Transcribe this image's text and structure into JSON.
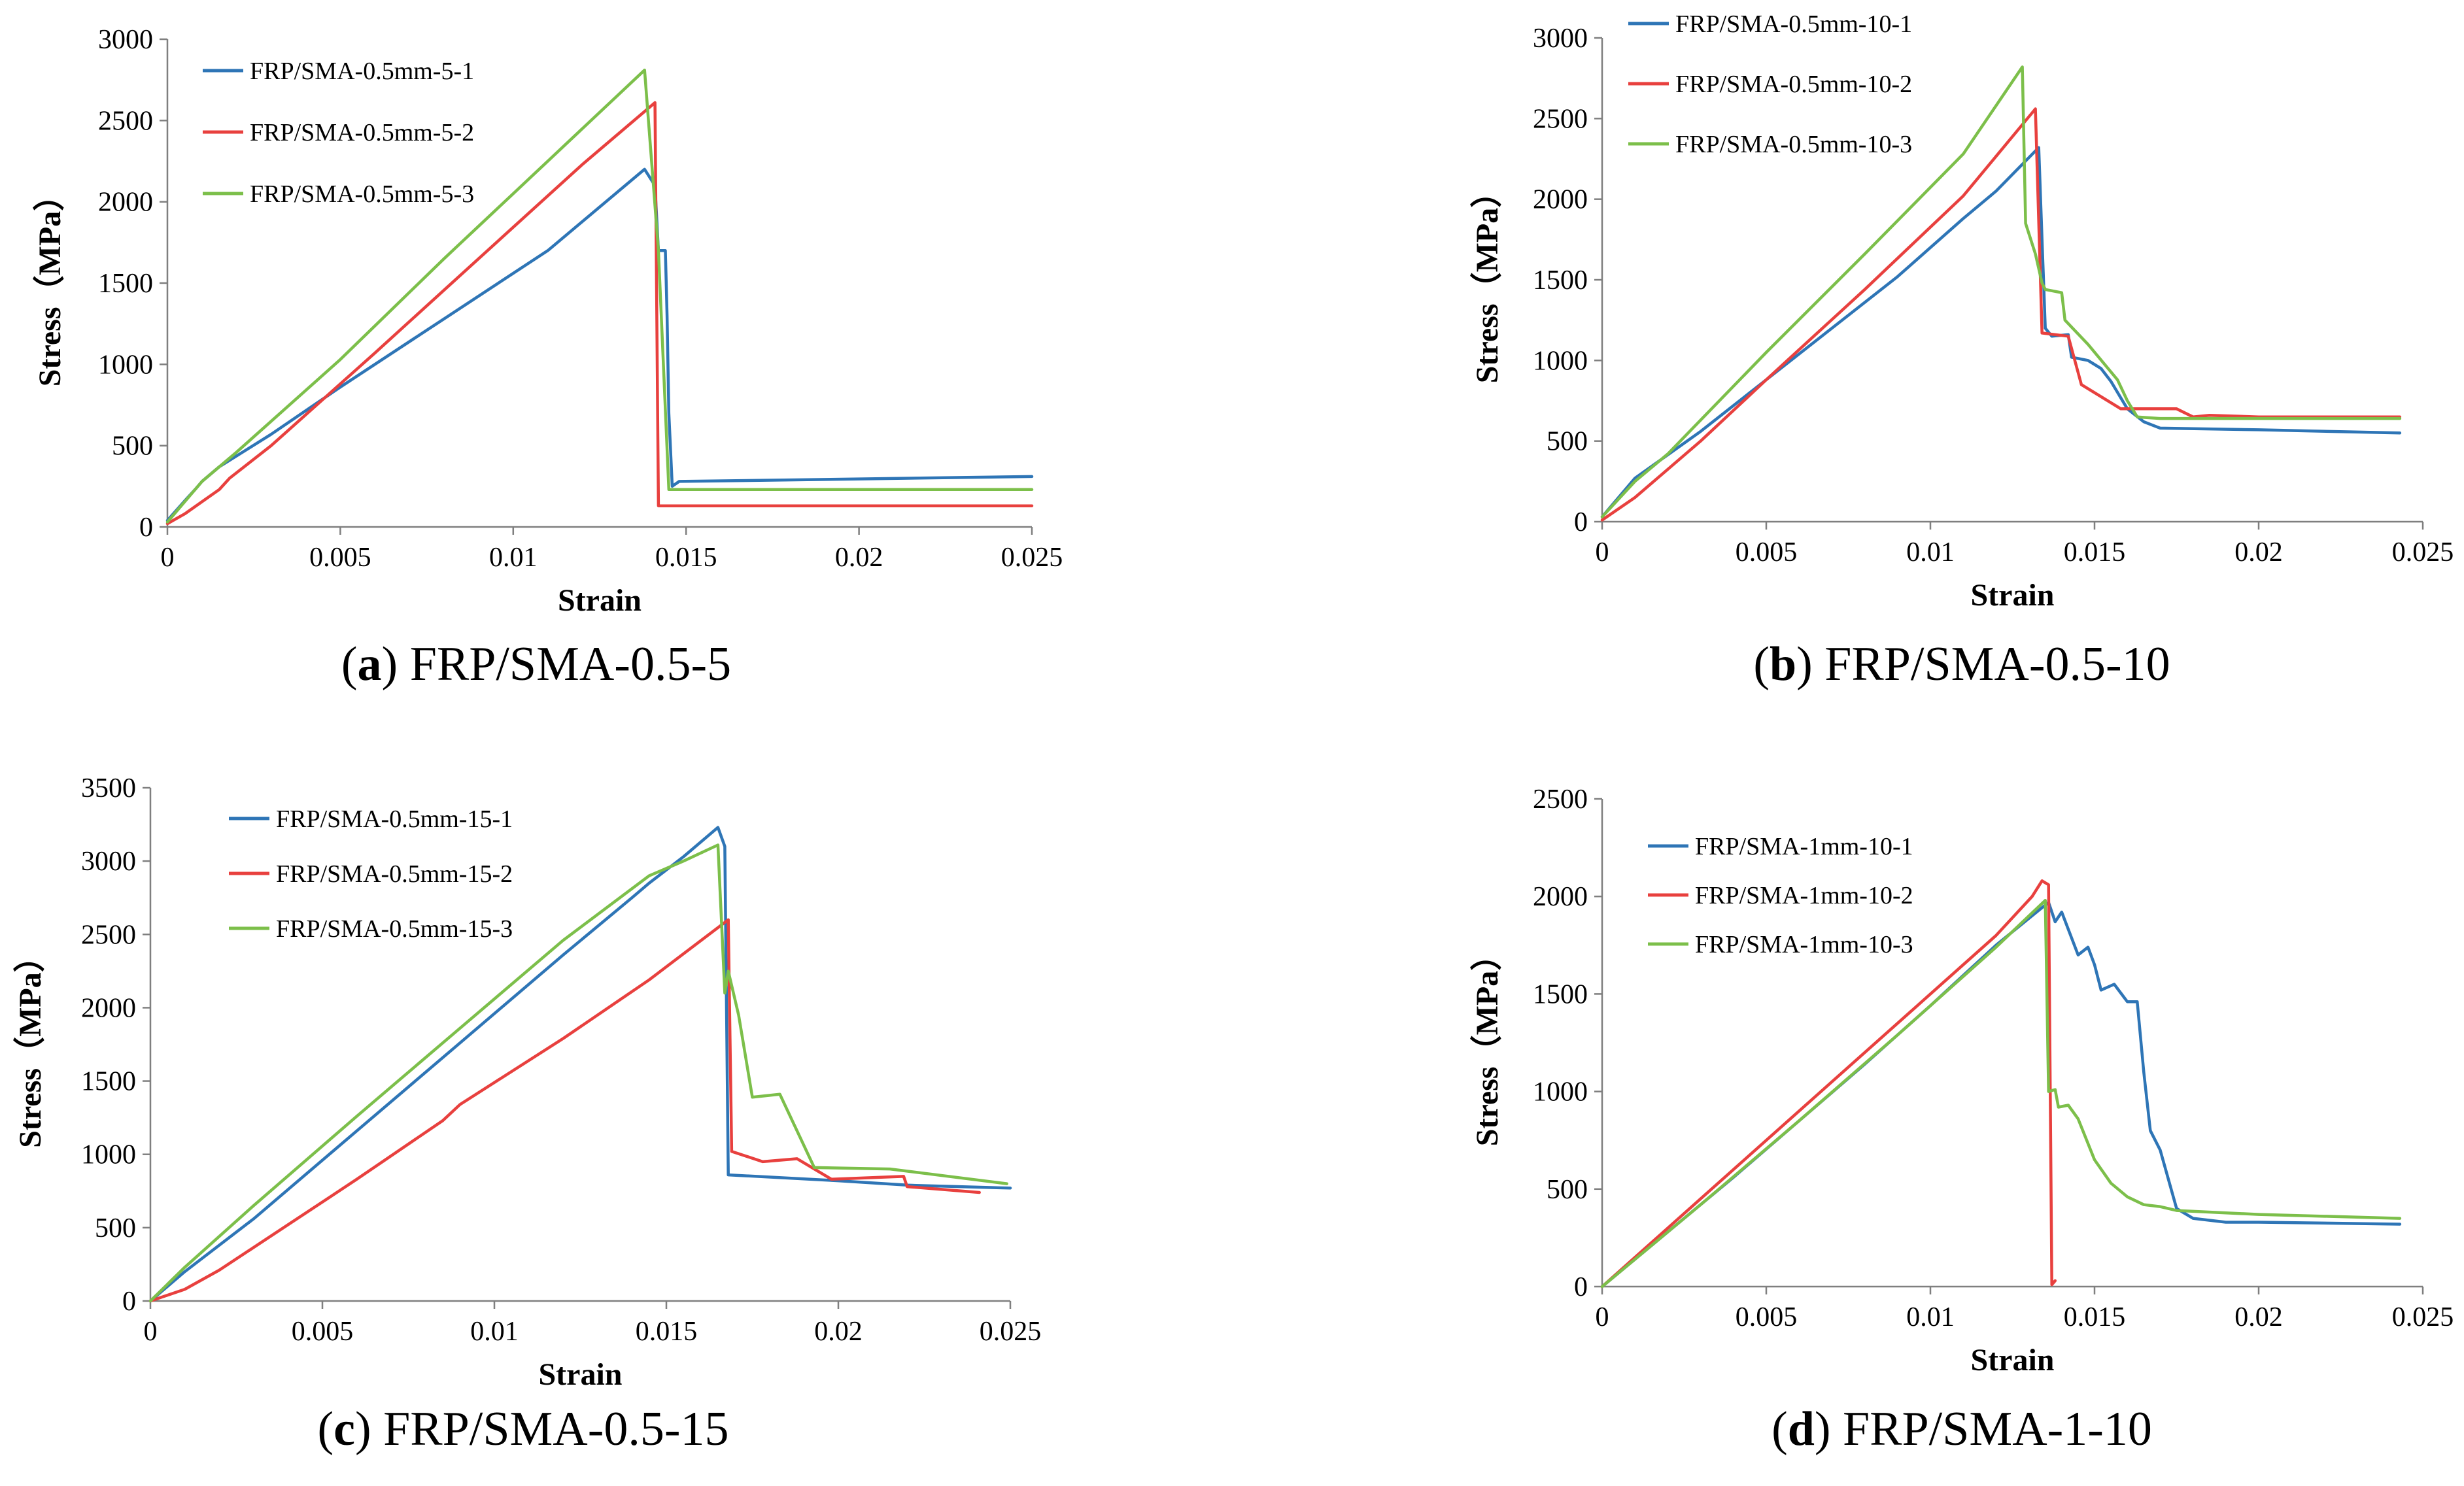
{
  "colors": {
    "series1": "#2E75B6",
    "series2": "#E8403E",
    "series3": "#7CBF4A"
  },
  "chart_data": [
    {
      "type": "line",
      "caption_letter": "a",
      "caption_rest": ") FRP/SMA-0.5-5",
      "caption_open": "(",
      "xlabel": "Strain",
      "ylabel": "Stress（MPa）",
      "xlim": [
        0,
        0.025
      ],
      "ylim": [
        0,
        3000
      ],
      "xticks": [
        "0",
        "0.005",
        "0.01",
        "0.015",
        "0.02",
        "0.025"
      ],
      "xtick_values": [
        0,
        0.005,
        0.01,
        0.015,
        0.02,
        0.025
      ],
      "yticks": [
        "0",
        "500",
        "1000",
        "1500",
        "2000",
        "2500",
        "3000"
      ],
      "ytick_values": [
        0,
        500,
        1000,
        1500,
        2000,
        2500,
        3000
      ],
      "legend_position": "top-left",
      "series": [
        {
          "name": "FRP/SMA-0.5mm-5-1",
          "color_key": "series1",
          "points": [
            [
              0,
              40
            ],
            [
              0.0005,
              160
            ],
            [
              0.0008,
              230
            ],
            [
              0.001,
              280
            ],
            [
              0.0015,
              370
            ],
            [
              0.003,
              570
            ],
            [
              0.005,
              860
            ],
            [
              0.008,
              1280
            ],
            [
              0.011,
              1700
            ],
            [
              0.0138,
              2200
            ],
            [
              0.0141,
              2100
            ],
            [
              0.0142,
              1700
            ],
            [
              0.0144,
              1700
            ],
            [
              0.01445,
              1300
            ],
            [
              0.0145,
              700
            ],
            [
              0.0146,
              250
            ],
            [
              0.0148,
              280
            ],
            [
              0.02,
              295
            ],
            [
              0.025,
              310
            ]
          ]
        },
        {
          "name": "FRP/SMA-0.5mm-5-2",
          "color_key": "series2",
          "points": [
            [
              0,
              20
            ],
            [
              0.0005,
              80
            ],
            [
              0.0015,
              230
            ],
            [
              0.0018,
              300
            ],
            [
              0.003,
              500
            ],
            [
              0.006,
              1070
            ],
            [
              0.009,
              1650
            ],
            [
              0.012,
              2230
            ],
            [
              0.0141,
              2610
            ],
            [
              0.0142,
              130
            ],
            [
              0.02,
              130
            ],
            [
              0.025,
              130
            ]
          ]
        },
        {
          "name": "FRP/SMA-0.5mm-5-3",
          "color_key": "series3",
          "points": [
            [
              0,
              30
            ],
            [
              0.001,
              280
            ],
            [
              0.002,
              460
            ],
            [
              0.005,
              1030
            ],
            [
              0.008,
              1650
            ],
            [
              0.011,
              2250
            ],
            [
              0.0138,
              2810
            ],
            [
              0.0142,
              1700
            ],
            [
              0.0145,
              230
            ],
            [
              0.02,
              230
            ],
            [
              0.025,
              230
            ]
          ]
        }
      ]
    },
    {
      "type": "line",
      "caption_letter": "b",
      "caption_rest": ") FRP/SMA-0.5-10",
      "caption_open": "(",
      "xlabel": "Strain",
      "ylabel": "Stress（MPa）",
      "xlim": [
        0,
        0.025
      ],
      "ylim": [
        0,
        3000
      ],
      "xticks": [
        "0",
        "0.005",
        "0.01",
        "0.015",
        "0.02",
        "0.025"
      ],
      "xtick_values": [
        0,
        0.005,
        0.01,
        0.015,
        0.02,
        0.025
      ],
      "yticks": [
        "0",
        "500",
        "1000",
        "1500",
        "2000",
        "2500",
        "3000"
      ],
      "ytick_values": [
        0,
        500,
        1000,
        1500,
        2000,
        2500,
        3000
      ],
      "legend_position": "top-left",
      "series": [
        {
          "name": "FRP/SMA-0.5mm-10-1",
          "color_key": "series1",
          "points": [
            [
              0,
              30
            ],
            [
              0.001,
              270
            ],
            [
              0.003,
              560
            ],
            [
              0.005,
              880
            ],
            [
              0.007,
              1200
            ],
            [
              0.009,
              1520
            ],
            [
              0.011,
              1880
            ],
            [
              0.012,
              2050
            ],
            [
              0.0133,
              2320
            ],
            [
              0.0134,
              1750
            ],
            [
              0.0135,
              1200
            ],
            [
              0.0137,
              1150
            ],
            [
              0.0142,
              1160
            ],
            [
              0.0143,
              1020
            ],
            [
              0.0148,
              1000
            ],
            [
              0.0152,
              950
            ],
            [
              0.0155,
              870
            ],
            [
              0.016,
              700
            ],
            [
              0.0165,
              620
            ],
            [
              0.017,
              580
            ],
            [
              0.02,
              570
            ],
            [
              0.0243,
              550
            ]
          ]
        },
        {
          "name": "FRP/SMA-0.5mm-10-2",
          "color_key": "series2",
          "points": [
            [
              0,
              10
            ],
            [
              0.001,
              150
            ],
            [
              0.003,
              500
            ],
            [
              0.005,
              880
            ],
            [
              0.008,
              1440
            ],
            [
              0.011,
              2020
            ],
            [
              0.0132,
              2560
            ],
            [
              0.0134,
              1170
            ],
            [
              0.0142,
              1150
            ],
            [
              0.0146,
              850
            ],
            [
              0.0158,
              700
            ],
            [
              0.0175,
              700
            ],
            [
              0.018,
              650
            ],
            [
              0.0185,
              660
            ],
            [
              0.02,
              650
            ],
            [
              0.0243,
              650
            ]
          ]
        },
        {
          "name": "FRP/SMA-0.5mm-10-3",
          "color_key": "series3",
          "points": [
            [
              0,
              30
            ],
            [
              0.001,
              250
            ],
            [
              0.002,
              420
            ],
            [
              0.005,
              1050
            ],
            [
              0.008,
              1660
            ],
            [
              0.011,
              2280
            ],
            [
              0.0128,
              2820
            ],
            [
              0.0129,
              1850
            ],
            [
              0.0132,
              1660
            ],
            [
              0.0134,
              1480
            ],
            [
              0.0135,
              1440
            ],
            [
              0.014,
              1420
            ],
            [
              0.0141,
              1250
            ],
            [
              0.0148,
              1100
            ],
            [
              0.0157,
              880
            ],
            [
              0.016,
              750
            ],
            [
              0.0163,
              650
            ],
            [
              0.017,
              640
            ],
            [
              0.02,
              640
            ],
            [
              0.0243,
              640
            ]
          ]
        }
      ]
    },
    {
      "type": "line",
      "caption_letter": "c",
      "caption_rest": ") FRP/SMA-0.5-15",
      "caption_open": "(",
      "xlabel": "Strain",
      "ylabel": "Stress（MPa）",
      "xlim": [
        0,
        0.025
      ],
      "ylim": [
        0,
        3500
      ],
      "xticks": [
        "0",
        "0.005",
        "0.01",
        "0.015",
        "0.02",
        "0.025"
      ],
      "xtick_values": [
        0,
        0.005,
        0.01,
        0.015,
        0.02,
        0.025
      ],
      "yticks": [
        "0",
        "500",
        "1000",
        "1500",
        "2000",
        "2500",
        "3000",
        "3500"
      ],
      "ytick_values": [
        0,
        500,
        1000,
        1500,
        2000,
        2500,
        3000,
        3500
      ],
      "legend_position": "top-left",
      "series": [
        {
          "name": "FRP/SMA-0.5mm-15-1",
          "color_key": "series1",
          "points": [
            [
              0,
              0
            ],
            [
              0.001,
              200
            ],
            [
              0.003,
              560
            ],
            [
              0.006,
              1160
            ],
            [
              0.009,
              1760
            ],
            [
              0.012,
              2360
            ],
            [
              0.014,
              2750
            ],
            [
              0.0145,
              2850
            ],
            [
              0.0155,
              3030
            ],
            [
              0.0165,
              3230
            ],
            [
              0.0167,
              3100
            ],
            [
              0.0168,
              860
            ],
            [
              0.02,
              820
            ],
            [
              0.022,
              790
            ],
            [
              0.025,
              770
            ]
          ]
        },
        {
          "name": "FRP/SMA-0.5mm-15-2",
          "color_key": "series2",
          "points": [
            [
              0,
              0
            ],
            [
              0.001,
              80
            ],
            [
              0.002,
              210
            ],
            [
              0.004,
              520
            ],
            [
              0.006,
              830
            ],
            [
              0.0085,
              1230
            ],
            [
              0.009,
              1340
            ],
            [
              0.012,
              1790
            ],
            [
              0.0145,
              2190
            ],
            [
              0.0168,
              2600
            ],
            [
              0.0169,
              1020
            ],
            [
              0.0178,
              950
            ],
            [
              0.0188,
              970
            ],
            [
              0.0198,
              830
            ],
            [
              0.0219,
              850
            ],
            [
              0.022,
              780
            ],
            [
              0.0241,
              740
            ]
          ]
        },
        {
          "name": "FRP/SMA-0.5mm-15-3",
          "color_key": "series3",
          "points": [
            [
              0,
              0
            ],
            [
              0.001,
              230
            ],
            [
              0.003,
              650
            ],
            [
              0.006,
              1260
            ],
            [
              0.009,
              1860
            ],
            [
              0.012,
              2460
            ],
            [
              0.0145,
              2900
            ],
            [
              0.0155,
              3000
            ],
            [
              0.0165,
              3110
            ],
            [
              0.0167,
              2100
            ],
            [
              0.0168,
              2250
            ],
            [
              0.0171,
              1950
            ],
            [
              0.0175,
              1390
            ],
            [
              0.0183,
              1410
            ],
            [
              0.0193,
              910
            ],
            [
              0.0215,
              900
            ],
            [
              0.0249,
              800
            ]
          ]
        }
      ]
    },
    {
      "type": "line",
      "caption_letter": "d",
      "caption_rest": ") FRP/SMA-1-10",
      "caption_open": "(",
      "xlabel": "Strain",
      "ylabel": "Stress（MPa）",
      "xlim": [
        0,
        0.025
      ],
      "ylim": [
        0,
        2500
      ],
      "xticks": [
        "0",
        "0.005",
        "0.01",
        "0.015",
        "0.02",
        "0.025"
      ],
      "xtick_values": [
        0,
        0.005,
        0.01,
        0.015,
        0.02,
        0.025
      ],
      "yticks": [
        "0",
        "500",
        "1000",
        "1500",
        "2000",
        "2500"
      ],
      "ytick_values": [
        0,
        500,
        1000,
        1500,
        2000,
        2500
      ],
      "legend_position": "top-left",
      "series": [
        {
          "name": "FRP/SMA-1mm-10-1",
          "color_key": "series1",
          "points": [
            [
              0,
              0
            ],
            [
              0.002,
              280
            ],
            [
              0.004,
              560
            ],
            [
              0.006,
              850
            ],
            [
              0.008,
              1140
            ],
            [
              0.01,
              1440
            ],
            [
              0.012,
              1750
            ],
            [
              0.0136,
              1970
            ],
            [
              0.0138,
              1870
            ],
            [
              0.014,
              1920
            ],
            [
              0.0145,
              1700
            ],
            [
              0.0148,
              1740
            ],
            [
              0.015,
              1650
            ],
            [
              0.0152,
              1520
            ],
            [
              0.0156,
              1550
            ],
            [
              0.016,
              1460
            ],
            [
              0.0163,
              1460
            ],
            [
              0.0165,
              1100
            ],
            [
              0.0167,
              800
            ],
            [
              0.017,
              700
            ],
            [
              0.0175,
              400
            ],
            [
              0.018,
              350
            ],
            [
              0.019,
              330
            ],
            [
              0.02,
              330
            ],
            [
              0.0243,
              320
            ]
          ]
        },
        {
          "name": "FRP/SMA-1mm-10-2",
          "color_key": "series2",
          "points": [
            [
              0,
              0
            ],
            [
              0.003,
              450
            ],
            [
              0.006,
              900
            ],
            [
              0.009,
              1350
            ],
            [
              0.012,
              1800
            ],
            [
              0.0131,
              2000
            ],
            [
              0.0134,
              2080
            ],
            [
              0.0136,
              2060
            ],
            [
              0.0137,
              10
            ],
            [
              0.0138,
              30
            ]
          ]
        },
        {
          "name": "FRP/SMA-1mm-10-3",
          "color_key": "series3",
          "points": [
            [
              0,
              0
            ],
            [
              0.003,
              420
            ],
            [
              0.006,
              850
            ],
            [
              0.009,
              1290
            ],
            [
              0.012,
              1740
            ],
            [
              0.0135,
              1980
            ],
            [
              0.0136,
              1000
            ],
            [
              0.0138,
              1010
            ],
            [
              0.0139,
              920
            ],
            [
              0.0142,
              930
            ],
            [
              0.0145,
              860
            ],
            [
              0.015,
              650
            ],
            [
              0.0155,
              530
            ],
            [
              0.016,
              460
            ],
            [
              0.0165,
              420
            ],
            [
              0.017,
              410
            ],
            [
              0.0175,
              390
            ],
            [
              0.02,
              370
            ],
            [
              0.0243,
              350
            ]
          ]
        }
      ]
    }
  ]
}
